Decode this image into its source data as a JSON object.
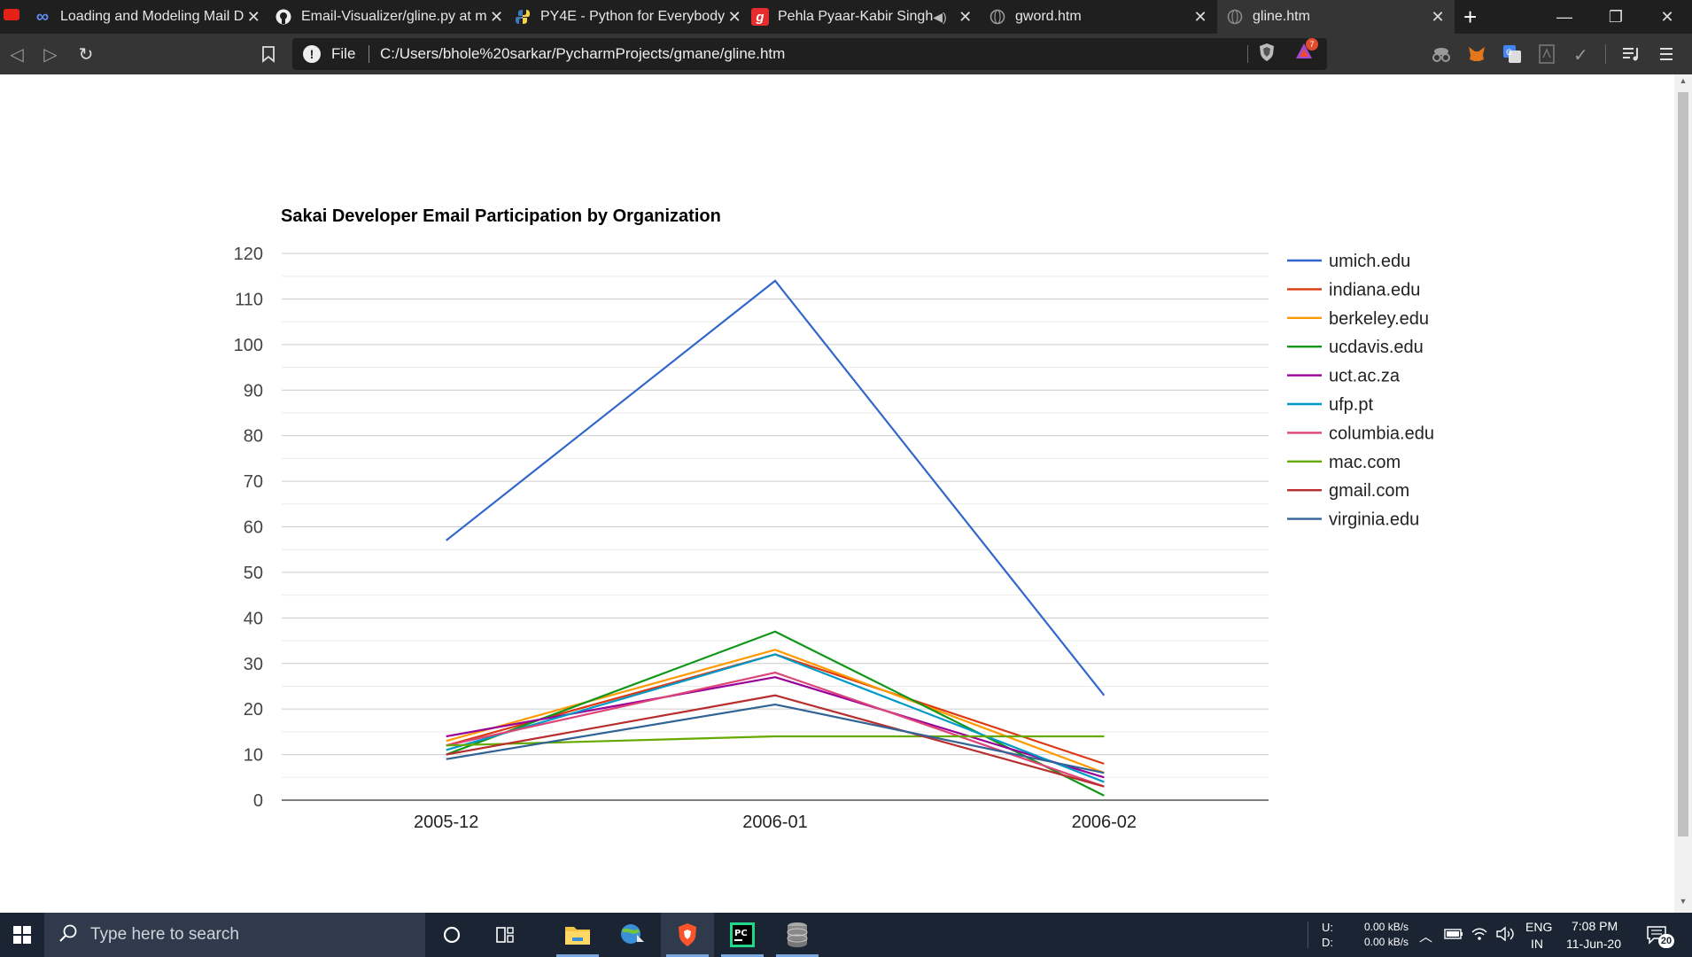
{
  "browser": {
    "tabs": [
      {
        "title": "Loading and Modeling Mail D",
        "icon": "infinity-icon"
      },
      {
        "title": "Email-Visualizer/gline.py at m",
        "icon": "github-icon"
      },
      {
        "title": "PY4E - Python for Everybody",
        "icon": "python-icon"
      },
      {
        "title": "Pehla Pyaar-Kabir Singh",
        "icon": "gaana-icon"
      },
      {
        "title": "gword.htm",
        "icon": "globe-icon"
      },
      {
        "title": "gline.htm",
        "icon": "globe-icon"
      }
    ],
    "address": {
      "scheme": "File",
      "url": "C:/Users/bhole%20sarkar/PycharmProjects/gmane/gline.htm"
    },
    "rewards_badge": "7"
  },
  "chart_data": {
    "type": "line",
    "title": "Sakai Developer Email Participation by Organization",
    "xlabel": "",
    "ylabel": "",
    "categories": [
      "2005-12",
      "2006-01",
      "2006-02"
    ],
    "ylim": [
      0,
      120
    ],
    "yticks": [
      0,
      10,
      20,
      30,
      40,
      50,
      60,
      70,
      80,
      90,
      100,
      110,
      120
    ],
    "grid": true,
    "legend_position": "right",
    "series": [
      {
        "name": "umich.edu",
        "color": "#3366cc",
        "values": [
          57,
          114,
          23
        ]
      },
      {
        "name": "indiana.edu",
        "color": "#dc3912",
        "values": [
          12,
          32,
          8
        ]
      },
      {
        "name": "berkeley.edu",
        "color": "#ff9900",
        "values": [
          13,
          33,
          6
        ]
      },
      {
        "name": "ucdavis.edu",
        "color": "#109618",
        "values": [
          10,
          37,
          1
        ]
      },
      {
        "name": "uct.ac.za",
        "color": "#990099",
        "values": [
          14,
          27,
          5
        ]
      },
      {
        "name": "ufp.pt",
        "color": "#0099c6",
        "values": [
          11,
          32,
          4
        ]
      },
      {
        "name": "columbia.edu",
        "color": "#dd4477",
        "values": [
          12,
          28,
          3
        ]
      },
      {
        "name": "mac.com",
        "color": "#66aa00",
        "values": [
          12,
          14,
          14
        ]
      },
      {
        "name": "gmail.com",
        "color": "#b82e2e",
        "values": [
          10,
          23,
          3
        ]
      },
      {
        "name": "virginia.edu",
        "color": "#316395",
        "values": [
          9,
          21,
          6
        ]
      }
    ]
  },
  "taskbar": {
    "search_placeholder": "Type here to search",
    "net_up_label": "U:",
    "net_down_label": "D:",
    "net_up_speed": "0.00 kB/s",
    "net_down_speed": "0.00 kB/s",
    "language": "ENG",
    "region": "IN",
    "time": "7:08 PM",
    "date": "11-Jun-20",
    "notification_count": "20"
  }
}
